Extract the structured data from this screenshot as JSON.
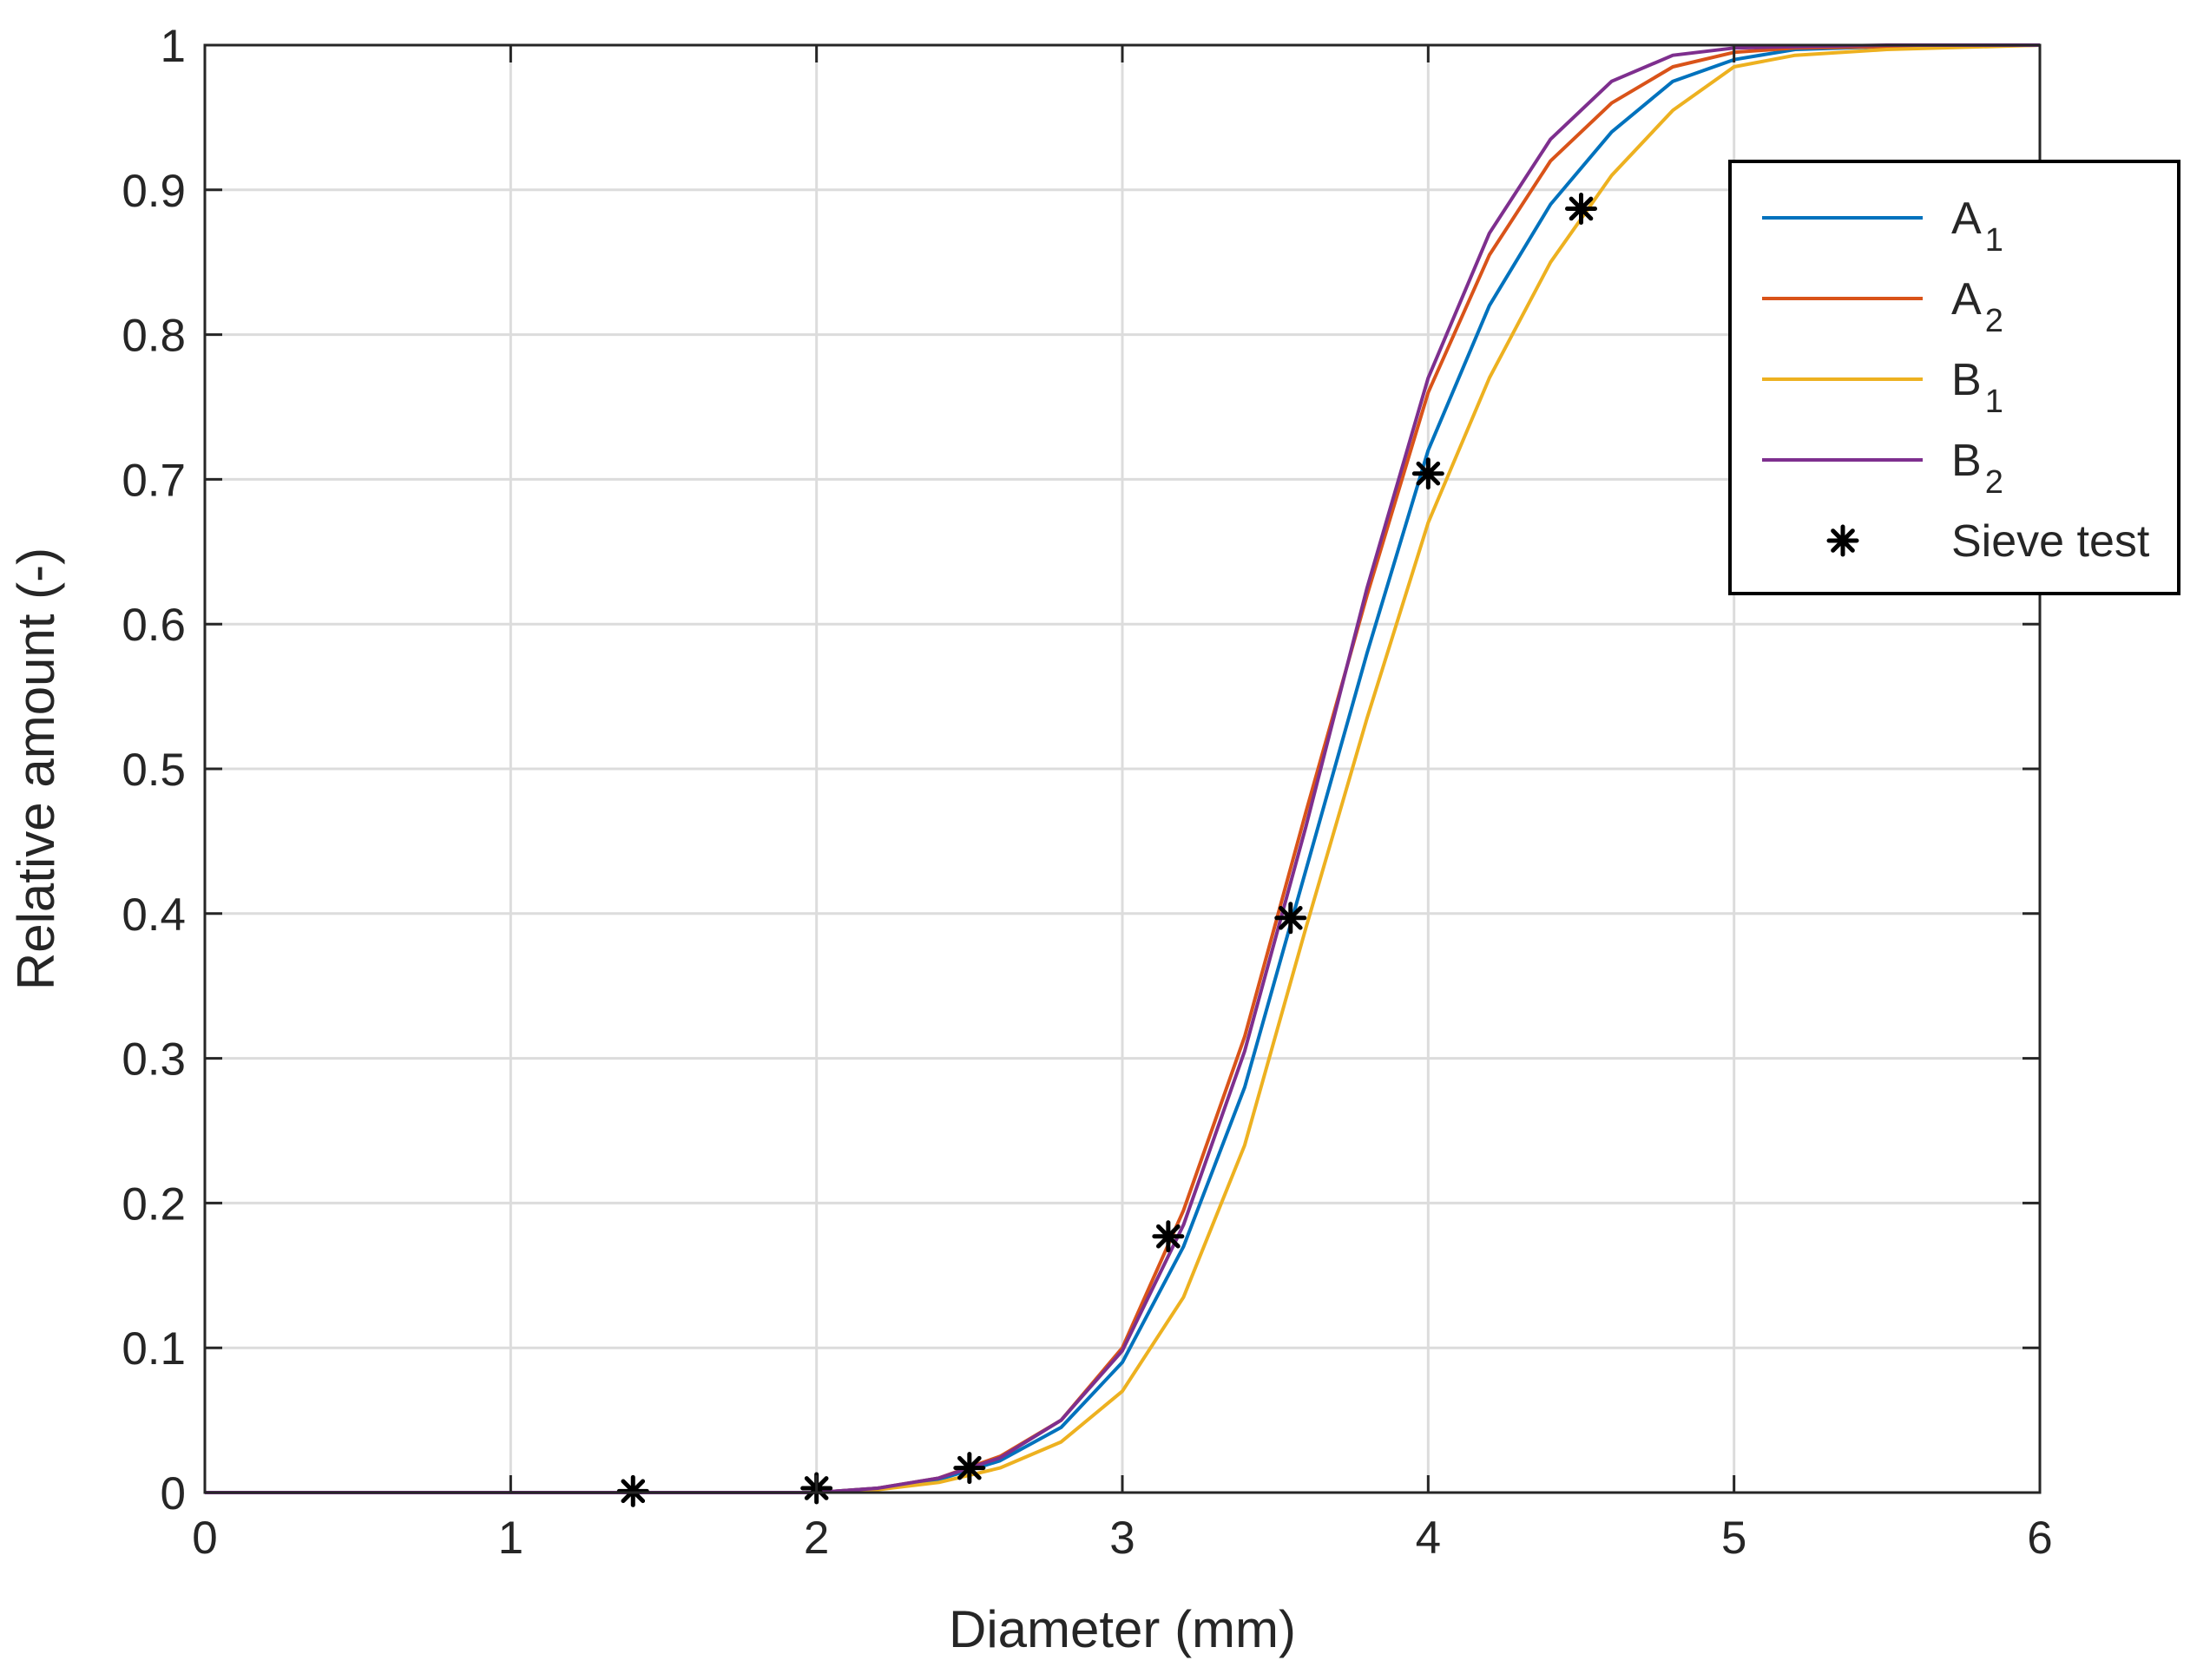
{
  "chart_data": {
    "type": "line",
    "xlabel": "Diameter (mm)",
    "ylabel": "Relative amount (-)",
    "xlim": [
      0,
      6
    ],
    "ylim": [
      0,
      1
    ],
    "xticks": [
      "0",
      "1",
      "2",
      "3",
      "4",
      "5",
      "6"
    ],
    "yticks": [
      "0",
      "0.1",
      "0.2",
      "0.3",
      "0.4",
      "0.5",
      "0.6",
      "0.7",
      "0.8",
      "0.9",
      "1"
    ],
    "grid": true,
    "legend_position": "top-right",
    "series": [
      {
        "name": "A",
        "subscript": "1",
        "color": "#0072BD",
        "marker": "none",
        "x": [
          0,
          2.0,
          2.2,
          2.4,
          2.6,
          2.8,
          3.0,
          3.2,
          3.4,
          3.6,
          3.8,
          4.0,
          4.2,
          4.4,
          4.6,
          4.8,
          5.0,
          5.2,
          5.5,
          6.0
        ],
        "y": [
          0,
          0,
          0.003,
          0.009,
          0.022,
          0.045,
          0.09,
          0.17,
          0.28,
          0.43,
          0.58,
          0.72,
          0.82,
          0.89,
          0.94,
          0.975,
          0.99,
          0.997,
          0.999,
          1.0
        ]
      },
      {
        "name": "A",
        "subscript": "2",
        "color": "#D95319",
        "marker": "none",
        "x": [
          0,
          2.0,
          2.2,
          2.4,
          2.6,
          2.8,
          3.0,
          3.2,
          3.4,
          3.6,
          3.8,
          4.0,
          4.2,
          4.4,
          4.6,
          4.8,
          5.0,
          5.2,
          5.5,
          6.0
        ],
        "y": [
          0,
          0,
          0.003,
          0.01,
          0.025,
          0.05,
          0.1,
          0.195,
          0.315,
          0.47,
          0.62,
          0.76,
          0.855,
          0.92,
          0.96,
          0.985,
          0.995,
          0.998,
          0.999,
          1.0
        ]
      },
      {
        "name": "B",
        "subscript": "1",
        "color": "#EDB120",
        "marker": "none",
        "x": [
          0,
          2.0,
          2.2,
          2.4,
          2.6,
          2.8,
          3.0,
          3.2,
          3.4,
          3.6,
          3.8,
          4.0,
          4.2,
          4.4,
          4.6,
          4.8,
          5.0,
          5.2,
          5.5,
          6.0
        ],
        "y": [
          0,
          0,
          0.002,
          0.007,
          0.017,
          0.035,
          0.07,
          0.135,
          0.24,
          0.39,
          0.535,
          0.67,
          0.77,
          0.85,
          0.91,
          0.955,
          0.985,
          0.993,
          0.997,
          1.0
        ]
      },
      {
        "name": "B",
        "subscript": "2",
        "color": "#7E2F8E",
        "marker": "none",
        "x": [
          0,
          2.0,
          2.2,
          2.4,
          2.6,
          2.8,
          3.0,
          3.2,
          3.4,
          3.6,
          3.8,
          4.0,
          4.2,
          4.4,
          4.6,
          4.8,
          5.0,
          5.2,
          5.5,
          6.0
        ],
        "y": [
          0,
          0,
          0.003,
          0.01,
          0.024,
          0.05,
          0.098,
          0.185,
          0.305,
          0.46,
          0.625,
          0.77,
          0.87,
          0.935,
          0.975,
          0.993,
          0.998,
          0.999,
          1.0,
          1.0
        ]
      },
      {
        "name": "Sieve test",
        "subscript": "",
        "color": "#000000",
        "marker": "asterisk",
        "line": "none",
        "x": [
          1.4,
          2.0,
          2.5,
          3.15,
          3.55,
          4.0,
          4.5
        ],
        "y": [
          0.001,
          0.003,
          0.017,
          0.177,
          0.397,
          0.704,
          0.887
        ]
      }
    ]
  }
}
